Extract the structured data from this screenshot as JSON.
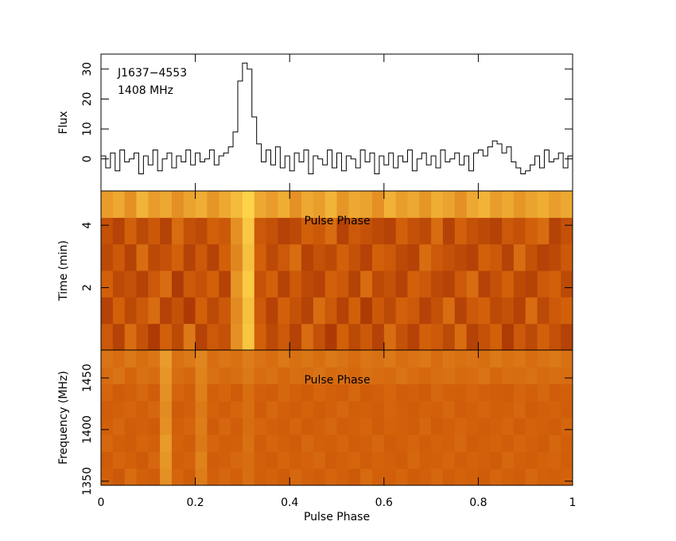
{
  "chart_data": [
    {
      "type": "line",
      "ylabel": "Flux",
      "annotations": [
        "J1637−4553",
        "1408 MHz"
      ],
      "color": "#000000",
      "xlim": [
        0,
        1
      ],
      "ylim": [
        -10.7,
        35
      ],
      "yticks": [
        0,
        10,
        20,
        30
      ],
      "values": [
        1,
        -3,
        2,
        -4,
        3,
        -1,
        0,
        2,
        -5,
        1,
        -2,
        3,
        -4,
        0,
        2,
        -3,
        1,
        -1,
        3,
        -2,
        2,
        -1,
        0,
        3,
        -2,
        1,
        2,
        4,
        9,
        26,
        32,
        30,
        14,
        5,
        -1,
        3,
        -2,
        4,
        -3,
        1,
        -4,
        2,
        -1,
        3,
        -5,
        1,
        0,
        -2,
        3,
        -3,
        2,
        -4,
        1,
        0,
        -3,
        3,
        -1,
        2,
        -5,
        1,
        -2,
        2,
        -3,
        1,
        -1,
        3,
        -4,
        0,
        2,
        -2,
        1,
        -3,
        3,
        -1,
        0,
        2,
        -2,
        1,
        -4,
        2,
        3,
        1,
        4,
        6,
        5,
        2,
        4,
        -1,
        -3,
        -5,
        -4,
        -2,
        1,
        -3,
        3,
        -1,
        0,
        2,
        -3,
        1
      ]
    },
    {
      "type": "heatmap",
      "ylabel": "Time (min)",
      "annotation": "Pulse Phase",
      "xlim": [
        0,
        1
      ],
      "ylim": [
        0,
        5.1
      ],
      "yticks": [
        2,
        4
      ],
      "zlim": [
        0,
        1
      ],
      "colormap": [
        "#8a1600",
        "#d2600a",
        "#ffd84c"
      ],
      "z": [
        [
          0.45,
          0.3,
          0.55,
          0.4,
          0.25,
          0.5,
          0.35,
          0.6,
          0.3,
          0.45,
          0.4,
          0.7,
          0.92,
          0.5,
          0.35,
          0.45,
          0.3,
          0.55,
          0.4,
          0.25,
          0.5,
          0.35,
          0.45,
          0.3,
          0.55,
          0.4,
          0.3,
          0.5,
          0.45,
          0.35,
          0.55,
          0.3,
          0.4,
          0.5,
          0.25,
          0.45,
          0.35,
          0.5,
          0.4,
          0.3
        ],
        [
          0.3,
          0.5,
          0.35,
          0.45,
          0.55,
          0.3,
          0.4,
          0.25,
          0.5,
          0.35,
          0.45,
          0.68,
          0.9,
          0.45,
          0.3,
          0.5,
          0.4,
          0.3,
          0.55,
          0.45,
          0.3,
          0.5,
          0.25,
          0.45,
          0.35,
          0.5,
          0.45,
          0.3,
          0.4,
          0.55,
          0.3,
          0.45,
          0.5,
          0.35,
          0.4,
          0.3,
          0.55,
          0.35,
          0.45,
          0.5
        ],
        [
          0.5,
          0.35,
          0.4,
          0.3,
          0.45,
          0.55,
          0.25,
          0.45,
          0.4,
          0.5,
          0.3,
          0.72,
          0.94,
          0.4,
          0.5,
          0.3,
          0.45,
          0.35,
          0.3,
          0.5,
          0.45,
          0.3,
          0.55,
          0.35,
          0.4,
          0.3,
          0.5,
          0.45,
          0.35,
          0.3,
          0.45,
          0.55,
          0.3,
          0.4,
          0.5,
          0.35,
          0.3,
          0.45,
          0.5,
          0.35
        ],
        [
          0.35,
          0.45,
          0.3,
          0.55,
          0.35,
          0.4,
          0.5,
          0.3,
          0.45,
          0.3,
          0.5,
          0.66,
          0.9,
          0.5,
          0.35,
          0.45,
          0.55,
          0.3,
          0.4,
          0.35,
          0.5,
          0.4,
          0.3,
          0.5,
          0.45,
          0.35,
          0.3,
          0.55,
          0.45,
          0.4,
          0.35,
          0.3,
          0.5,
          0.45,
          0.3,
          0.55,
          0.4,
          0.3,
          0.35,
          0.45
        ],
        [
          0.4,
          0.3,
          0.5,
          0.35,
          0.45,
          0.3,
          0.55,
          0.4,
          0.35,
          0.5,
          0.45,
          0.7,
          0.93,
          0.45,
          0.4,
          0.3,
          0.35,
          0.5,
          0.45,
          0.55,
          0.3,
          0.45,
          0.4,
          0.35,
          0.3,
          0.5,
          0.4,
          0.35,
          0.55,
          0.3,
          0.5,
          0.4,
          0.35,
          0.3,
          0.45,
          0.4,
          0.5,
          0.55,
          0.3,
          0.4
        ],
        [
          0.75,
          0.8,
          0.7,
          0.85,
          0.75,
          0.8,
          0.7,
          0.78,
          0.82,
          0.72,
          0.8,
          0.88,
          0.98,
          0.8,
          0.75,
          0.82,
          0.7,
          0.8,
          0.76,
          0.85,
          0.72,
          0.8,
          0.78,
          0.7,
          0.84,
          0.76,
          0.8,
          0.72,
          0.82,
          0.78,
          0.7,
          0.8,
          0.85,
          0.75,
          0.8,
          0.72,
          0.78,
          0.82,
          0.76,
          0.8
        ]
      ]
    },
    {
      "type": "heatmap",
      "ylabel": "Frequency (MHz)",
      "xlabel": "Pulse Phase",
      "annotation": "Pulse Phase",
      "xlim": [
        0,
        1
      ],
      "ylim": [
        1346,
        1477
      ],
      "yticks": [
        1350,
        1400,
        1450
      ],
      "xticks": [
        0,
        0.2,
        0.4,
        0.6,
        0.8,
        1
      ],
      "zlim": [
        0,
        1
      ],
      "colormap": [
        "#8a1600",
        "#d2600a",
        "#ffd84c"
      ],
      "z": [
        [
          0.5,
          0.45,
          0.55,
          0.5,
          0.48,
          0.7,
          0.52,
          0.47,
          0.62,
          0.5,
          0.53,
          0.5,
          0.56,
          0.49,
          0.51,
          0.47,
          0.53,
          0.5,
          0.48,
          0.52,
          0.5,
          0.46,
          0.54,
          0.5,
          0.49,
          0.52,
          0.47,
          0.5,
          0.53,
          0.48,
          0.51,
          0.5,
          0.47,
          0.52,
          0.5,
          0.48,
          0.53,
          0.5,
          0.49,
          0.51
        ],
        [
          0.47,
          0.52,
          0.5,
          0.46,
          0.53,
          0.72,
          0.49,
          0.51,
          0.64,
          0.48,
          0.5,
          0.53,
          0.55,
          0.5,
          0.47,
          0.52,
          0.49,
          0.51,
          0.53,
          0.47,
          0.5,
          0.52,
          0.48,
          0.51,
          0.5,
          0.47,
          0.53,
          0.49,
          0.5,
          0.52,
          0.48,
          0.51,
          0.5,
          0.47,
          0.53,
          0.5,
          0.48,
          0.51,
          0.52,
          0.49
        ],
        [
          0.53,
          0.49,
          0.47,
          0.52,
          0.5,
          0.74,
          0.51,
          0.48,
          0.6,
          0.52,
          0.49,
          0.5,
          0.57,
          0.48,
          0.52,
          0.5,
          0.47,
          0.53,
          0.5,
          0.49,
          0.52,
          0.48,
          0.5,
          0.53,
          0.47,
          0.5,
          0.52,
          0.48,
          0.51,
          0.5,
          0.53,
          0.47,
          0.5,
          0.51,
          0.48,
          0.52,
          0.5,
          0.47,
          0.53,
          0.5
        ],
        [
          0.5,
          0.53,
          0.48,
          0.5,
          0.47,
          0.7,
          0.5,
          0.52,
          0.62,
          0.47,
          0.53,
          0.48,
          0.55,
          0.52,
          0.5,
          0.48,
          0.52,
          0.47,
          0.5,
          0.53,
          0.48,
          0.5,
          0.52,
          0.47,
          0.51,
          0.5,
          0.48,
          0.53,
          0.47,
          0.5,
          0.52,
          0.5,
          0.48,
          0.5,
          0.52,
          0.47,
          0.51,
          0.5,
          0.48,
          0.52
        ],
        [
          0.48,
          0.5,
          0.52,
          0.49,
          0.53,
          0.68,
          0.47,
          0.5,
          0.6,
          0.51,
          0.48,
          0.52,
          0.56,
          0.47,
          0.53,
          0.5,
          0.48,
          0.51,
          0.47,
          0.5,
          0.53,
          0.49,
          0.5,
          0.48,
          0.52,
          0.5,
          0.47,
          0.51,
          0.5,
          0.53,
          0.48,
          0.5,
          0.52,
          0.49,
          0.5,
          0.53,
          0.47,
          0.5,
          0.51,
          0.48
        ],
        [
          0.52,
          0.47,
          0.5,
          0.53,
          0.48,
          0.7,
          0.52,
          0.49,
          0.63,
          0.5,
          0.52,
          0.47,
          0.55,
          0.5,
          0.48,
          0.53,
          0.5,
          0.47,
          0.52,
          0.5,
          0.48,
          0.53,
          0.47,
          0.5,
          0.52,
          0.48,
          0.5,
          0.47,
          0.53,
          0.5,
          0.49,
          0.52,
          0.5,
          0.48,
          0.47,
          0.52,
          0.5,
          0.53,
          0.48,
          0.5
        ],
        [
          0.55,
          0.58,
          0.52,
          0.57,
          0.55,
          0.72,
          0.56,
          0.53,
          0.64,
          0.57,
          0.54,
          0.56,
          0.6,
          0.55,
          0.57,
          0.53,
          0.56,
          0.55,
          0.58,
          0.54,
          0.56,
          0.53,
          0.57,
          0.55,
          0.54,
          0.58,
          0.55,
          0.53,
          0.56,
          0.57,
          0.54,
          0.55,
          0.58,
          0.53,
          0.56,
          0.55,
          0.57,
          0.54,
          0.56,
          0.55
        ],
        [
          0.58,
          0.55,
          0.6,
          0.56,
          0.59,
          0.75,
          0.57,
          0.6,
          0.66,
          0.56,
          0.59,
          0.57,
          0.62,
          0.58,
          0.55,
          0.6,
          0.57,
          0.59,
          0.56,
          0.6,
          0.58,
          0.55,
          0.59,
          0.57,
          0.6,
          0.56,
          0.58,
          0.6,
          0.55,
          0.59,
          0.57,
          0.58,
          0.56,
          0.6,
          0.57,
          0.59,
          0.55,
          0.58,
          0.6,
          0.57
        ]
      ]
    }
  ]
}
